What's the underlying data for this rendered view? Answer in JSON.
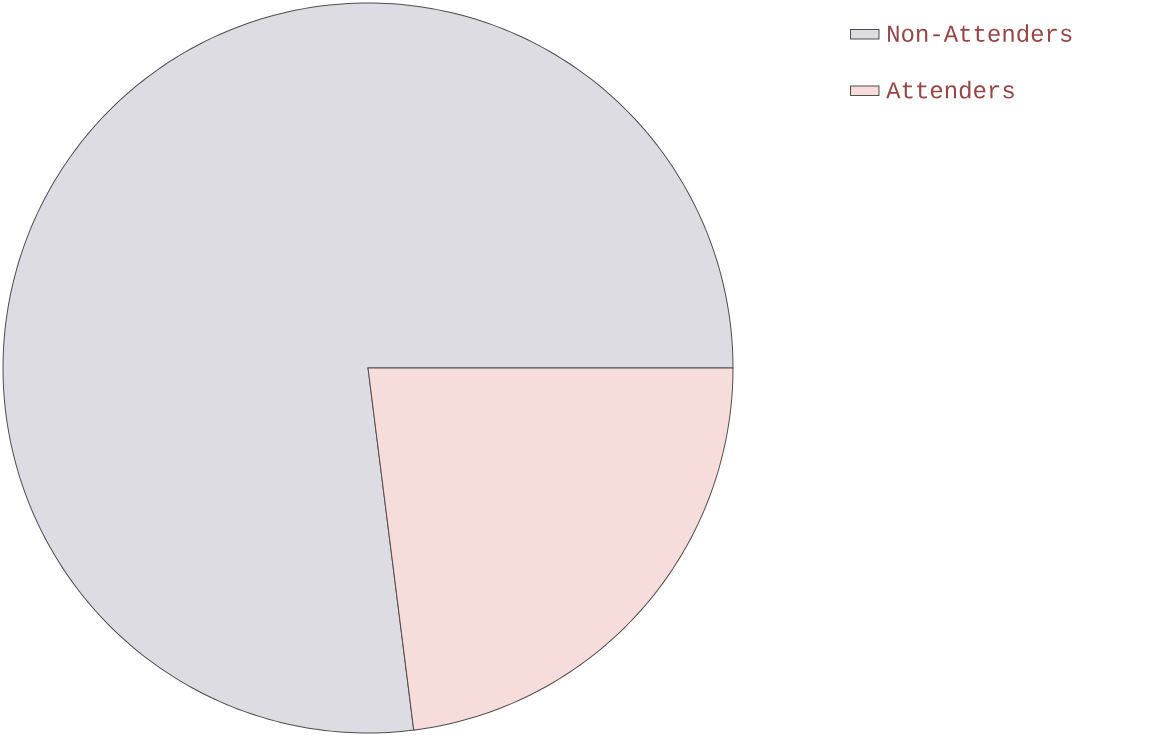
{
  "chart_data": {
    "type": "pie",
    "categories": [
      "Non-Attenders",
      "Attenders"
    ],
    "values": [
      77,
      23
    ],
    "colors": [
      "#dcdce2",
      "#f6dcdb"
    ],
    "legend": "top right"
  }
}
